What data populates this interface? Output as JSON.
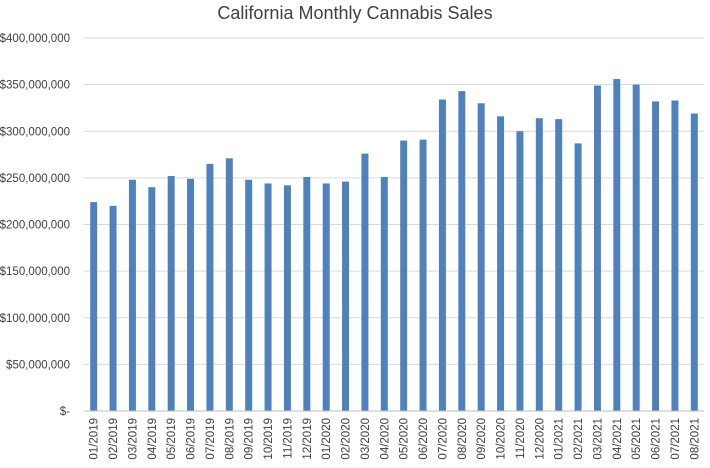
{
  "chart_data": {
    "type": "bar",
    "title": "California Monthly Cannabis Sales",
    "xlabel": "",
    "ylabel": "",
    "ylim": [
      0,
      400000000
    ],
    "yticks": [
      0,
      50000000,
      100000000,
      150000000,
      200000000,
      250000000,
      300000000,
      350000000,
      400000000
    ],
    "ytick_labels": [
      "$-",
      "$50,000,000",
      "$100,000,000",
      "$150,000,000",
      "$200,000,000",
      "$250,000,000",
      "$300,000,000",
      "$350,000,000",
      "$400,000,000"
    ],
    "grid": true,
    "legend": "none",
    "bar_color": "#4f81bd",
    "categories": [
      "01/2019",
      "02/2019",
      "03/2019",
      "04/2019",
      "05/2019",
      "06/2019",
      "07/2019",
      "08/2019",
      "09/2019",
      "10/2019",
      "11/2019",
      "12/2019",
      "01/2020",
      "02/2020",
      "03/2020",
      "04/2020",
      "05/2020",
      "06/2020",
      "07/2020",
      "08/2020",
      "09/2020",
      "10/2020",
      "11/2020",
      "12/2020",
      "01/2021",
      "02/2021",
      "03/2021",
      "04/2021",
      "05/2021",
      "06/2021",
      "07/2021",
      "08/2021"
    ],
    "values": [
      224000000,
      220000000,
      248000000,
      240000000,
      252000000,
      249000000,
      265000000,
      271000000,
      248000000,
      244000000,
      242000000,
      251000000,
      244000000,
      246000000,
      276000000,
      251000000,
      290000000,
      291000000,
      334000000,
      343000000,
      330000000,
      316000000,
      300000000,
      314000000,
      313000000,
      287000000,
      349000000,
      356000000,
      350000000,
      332000000,
      333000000,
      319000000
    ]
  }
}
